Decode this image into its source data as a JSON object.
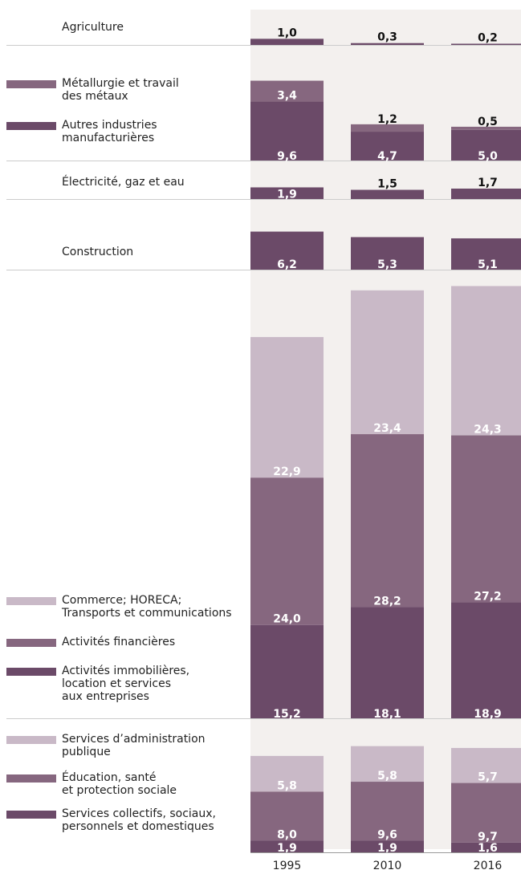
{
  "chart_data": {
    "type": "bar",
    "stacked": true,
    "categories": [
      "1995",
      "2010",
      "2016"
    ],
    "colors": {
      "dark": "#6b4a68",
      "mid": "#86677f",
      "light": "#c9b9c7",
      "band": "#f3f0ee",
      "line": "#cccccc"
    },
    "panels": [
      {
        "id": "agriculture",
        "legend": [
          {
            "label": "Agriculture",
            "swatch": "none"
          }
        ],
        "series": [
          {
            "name": "Agriculture",
            "tone": "dark",
            "values": [
              1.0,
              0.3,
              0.2
            ],
            "labels": [
              "1,0",
              "0,3",
              "0,2"
            ]
          }
        ]
      },
      {
        "id": "industry",
        "legend": [
          {
            "label": "Métallurgie et travail des métaux",
            "swatch": "mid"
          },
          {
            "label": "Autres industries manufacturières",
            "swatch": "dark"
          }
        ],
        "series": [
          {
            "name": "Autres industries manufacturières",
            "tone": "dark",
            "values": [
              9.6,
              4.7,
              5.0
            ],
            "labels": [
              "9,6",
              "4,7",
              "5,0"
            ]
          },
          {
            "name": "Métallurgie et travail des métaux",
            "tone": "mid",
            "values": [
              3.4,
              1.2,
              0.5
            ],
            "labels": [
              "3,4",
              "1,2",
              "0,5"
            ]
          }
        ]
      },
      {
        "id": "utilities",
        "legend": [
          {
            "label": "Électricité, gaz et eau",
            "swatch": "none"
          }
        ],
        "series": [
          {
            "name": "Électricité, gaz et eau",
            "tone": "dark",
            "values": [
              1.9,
              1.5,
              1.7
            ],
            "labels": [
              "1,9",
              "1,5",
              "1,7"
            ]
          }
        ]
      },
      {
        "id": "construction",
        "legend": [
          {
            "label": "Construction",
            "swatch": "none"
          }
        ],
        "series": [
          {
            "name": "Construction",
            "tone": "dark",
            "values": [
              6.2,
              5.3,
              5.1
            ],
            "labels": [
              "6,2",
              "5,3",
              "5,1"
            ]
          }
        ]
      },
      {
        "id": "market-services",
        "legend": [
          {
            "label": "Commerce; HORECA; Transports et communications",
            "swatch": "light"
          },
          {
            "label": "Activités financières",
            "swatch": "mid"
          },
          {
            "label": "Activités immobilières, location et services aux entreprises",
            "swatch": "dark"
          }
        ],
        "series": [
          {
            "name": "Activités immobilières, location et services aux entreprises",
            "tone": "dark",
            "values": [
              15.2,
              18.1,
              18.9
            ],
            "labels": [
              "15,2",
              "18,1",
              "18,9"
            ]
          },
          {
            "name": "Activités financières",
            "tone": "mid",
            "values": [
              24.0,
              28.2,
              27.2
            ],
            "labels": [
              "24,0",
              "28,2",
              "27,2"
            ]
          },
          {
            "name": "Commerce; HORECA; Transports et communications",
            "tone": "light",
            "values": [
              22.9,
              23.4,
              24.3
            ],
            "labels": [
              "22,9",
              "23,4",
              "24,3"
            ]
          }
        ]
      },
      {
        "id": "non-market-services",
        "legend": [
          {
            "label": "Services d’administration publique",
            "swatch": "light"
          },
          {
            "label": "Éducation, santé et protection sociale",
            "swatch": "mid"
          },
          {
            "label": "Services collectifs, sociaux, personnels et domestiques",
            "swatch": "dark"
          }
        ],
        "series": [
          {
            "name": "Services collectifs, sociaux, personnels et domestiques",
            "tone": "dark",
            "values": [
              1.9,
              1.9,
              1.6
            ],
            "labels": [
              "1,9",
              "1,9",
              "1,6"
            ]
          },
          {
            "name": "Éducation, santé et protection sociale",
            "tone": "mid",
            "values": [
              8.0,
              9.6,
              9.7
            ],
            "labels": [
              "8,0",
              "9,6",
              "9,7"
            ]
          },
          {
            "name": "Services d’administration publique",
            "tone": "light",
            "values": [
              5.8,
              5.8,
              5.7
            ],
            "labels": [
              "5,8",
              "5,8",
              "5,7"
            ]
          }
        ]
      }
    ]
  }
}
